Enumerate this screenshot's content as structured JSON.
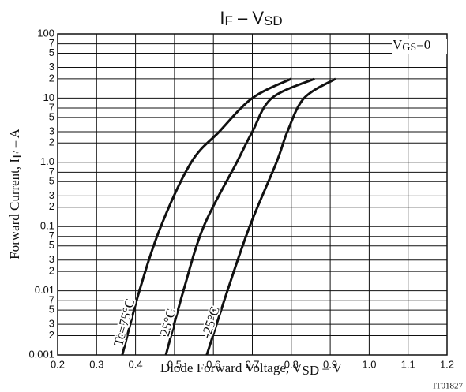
{
  "chart_data": {
    "type": "line",
    "title": [
      "I",
      "F",
      " – V",
      "SD"
    ],
    "x_label": [
      "Diode Forward Voltage, V",
      "SD",
      "  –  V"
    ],
    "y_label": [
      "Forward Current, I",
      "F",
      "  –  A"
    ],
    "annotation": [
      "V",
      "GS",
      "=0"
    ],
    "code": "IT01827",
    "log_y": true,
    "grid": true,
    "xlim": [
      0.2,
      1.2
    ],
    "ylim": [
      0.001,
      100
    ],
    "xticks": [
      0.2,
      0.3,
      0.4,
      0.5,
      0.6,
      0.7,
      0.8,
      0.9,
      {
        "value": 1,
        "label": "1.0"
      },
      1.1,
      1.2
    ],
    "yticks": [
      0.001,
      {
        "value": 0.002,
        "label": "2"
      },
      {
        "value": 0.003,
        "label": "3"
      },
      {
        "value": 0.005,
        "label": "5"
      },
      {
        "value": 0.007,
        "label": "7"
      },
      0.01,
      {
        "value": 0.02,
        "label": "2"
      },
      {
        "value": 0.03,
        "label": "3"
      },
      {
        "value": 0.05,
        "label": "5"
      },
      {
        "value": 0.07,
        "label": "7"
      },
      0.1,
      {
        "value": 0.2,
        "label": "2"
      },
      {
        "value": 0.3,
        "label": "3"
      },
      {
        "value": 0.5,
        "label": "5"
      },
      {
        "value": 0.7,
        "label": "7"
      },
      {
        "value": 1,
        "label": "1.0"
      },
      {
        "value": 2,
        "label": "2"
      },
      {
        "value": 3,
        "label": "3"
      },
      {
        "value": 5,
        "label": "5"
      },
      {
        "value": 7,
        "label": "7"
      },
      10,
      {
        "value": 20,
        "label": "2"
      },
      {
        "value": 30,
        "label": "3"
      },
      {
        "value": 50,
        "label": "5"
      },
      {
        "value": 70,
        "label": "7"
      },
      100
    ],
    "series": [
      {
        "name": "Tc=75°C",
        "color": "#111111",
        "x": [
          0.366,
          0.41,
          0.465,
          0.543,
          0.615,
          0.7,
          0.8
        ],
        "values": [
          0.001,
          0.01,
          0.1,
          1,
          3,
          10,
          20
        ]
      },
      {
        "name": "25°C",
        "color": "#111111",
        "x": [
          0.478,
          0.523,
          0.575,
          0.66,
          0.7,
          0.75,
          0.86
        ],
        "values": [
          0.001,
          0.01,
          0.1,
          1,
          3,
          10,
          20
        ]
      },
      {
        "name": "-25°C",
        "color": "#111111",
        "x": [
          0.583,
          0.636,
          0.693,
          0.762,
          0.79,
          0.833,
          0.914
        ],
        "values": [
          0.001,
          0.01,
          0.1,
          1,
          3,
          10,
          20
        ]
      }
    ]
  }
}
